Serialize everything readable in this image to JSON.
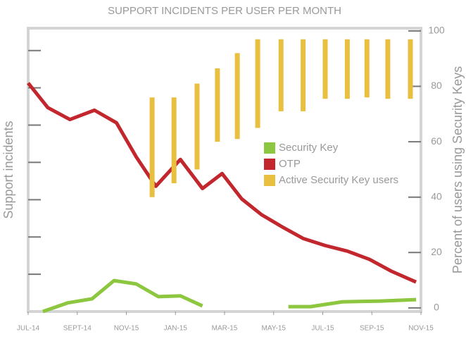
{
  "chart_data": {
    "type": "line",
    "title": "SUPPORT INCIDENTS PER USER PER MONTH",
    "y_label": "Support incidents",
    "y2_label": "Percent of users using Security Keys",
    "xlim": [
      0,
      16
    ],
    "xticks": [
      {
        "value": 0,
        "label": "JUL-14"
      },
      {
        "value": 2,
        "label": "SEPT-14"
      },
      {
        "value": 4,
        "label": "NOV-15"
      },
      {
        "value": 6,
        "label": "JAN-15"
      },
      {
        "value": 8,
        "label": "MAR-15"
      },
      {
        "value": 10,
        "label": "MAY-15"
      },
      {
        "value": 12,
        "label": "JUL-15"
      },
      {
        "value": 14,
        "label": "SEP-15"
      },
      {
        "value": 16,
        "label": "NOV-15"
      }
    ],
    "ylim": [
      0,
      7.6
    ],
    "yticks": [
      1,
      2,
      3,
      4,
      5,
      6,
      7
    ],
    "y2lim": [
      -1.3,
      101
    ],
    "y2ticks": [
      0,
      20,
      40,
      60,
      80,
      100
    ],
    "series": [
      {
        "name": "Security Key",
        "color": "#8dc63f",
        "x": [
          0.6,
          1.6,
          2.6,
          3.5,
          4.4,
          5.3,
          6.2,
          7.1,
          null,
          10.6,
          11.5,
          12.8,
          14.3,
          15.8
        ],
        "values": [
          0,
          0.23,
          0.34,
          0.83,
          0.74,
          0.4,
          0.42,
          0.15,
          null,
          0.13,
          0.13,
          0.26,
          0.28,
          0.32
        ]
      },
      {
        "name": "OTP",
        "color": "#c1272d",
        "x": [
          0,
          0.8,
          1.7,
          2.7,
          3.6,
          4.4,
          5.2,
          6.2,
          7.1,
          7.9,
          8.7,
          9.5,
          10.4,
          11.2,
          12.1,
          13.0,
          13.9,
          14.8,
          15.8
        ],
        "values": [
          6.13,
          5.47,
          5.15,
          5.4,
          5.06,
          4.15,
          3.36,
          4.08,
          3.3,
          3.7,
          3.02,
          2.6,
          2.25,
          1.96,
          1.77,
          1.62,
          1.4,
          1.08,
          0.79
        ]
      },
      {
        "name": "Active Security Key users",
        "color": "#e8bf3f",
        "axis": "y2",
        "kind": "range",
        "x": [
          5.05,
          5.94,
          6.88,
          7.71,
          8.52,
          9.35,
          10.3,
          11.2,
          12.1,
          13.0,
          13.8,
          14.65,
          15.57
        ],
        "low": [
          40,
          45,
          50,
          60,
          61,
          65,
          71,
          71,
          75.5,
          75.5,
          76,
          75.5,
          75.5
        ],
        "high": [
          76,
          76,
          81,
          86.5,
          92,
          97,
          97,
          97,
          97,
          97,
          97,
          97,
          97
        ]
      }
    ]
  }
}
